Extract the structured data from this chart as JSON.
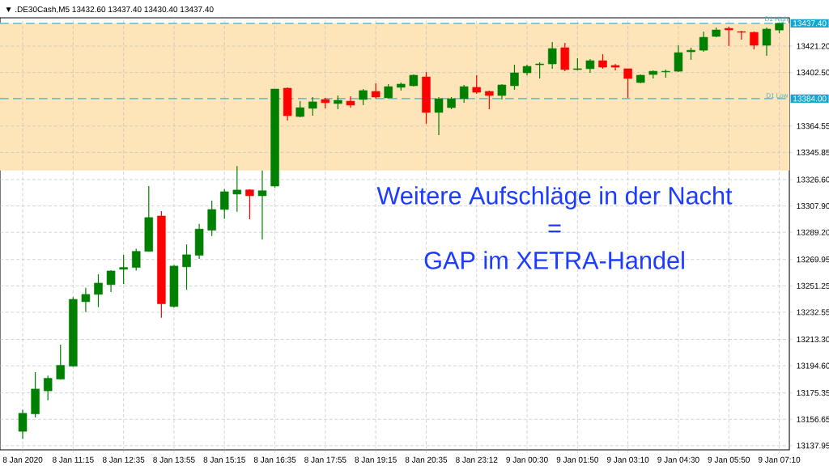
{
  "chart_data": {
    "type": "candlestick",
    "title": "▼ .DE30Cash,M5  13432.60 13437.40 13430.40 13437.40",
    "categories": [
      "8 Jan 2020",
      null,
      null,
      null,
      "8 Jan 11:15",
      null,
      null,
      null,
      "8 Jan 12:35",
      null,
      null,
      null,
      "8 Jan 13:55",
      null,
      null,
      null,
      "8 Jan 15:15",
      null,
      null,
      null,
      "8 Jan 16:35",
      null,
      null,
      null,
      "8 Jan 17:55",
      null,
      null,
      null,
      "8 Jan 19:15",
      null,
      null,
      null,
      "8 Jan 20:35",
      null,
      null,
      null,
      "8 Jan 23:12",
      null,
      null,
      null,
      "9 Jan 00:30",
      null,
      null,
      null,
      "9 Jan 01:50",
      null,
      null,
      null,
      "9 Jan 03:10",
      null,
      null,
      null,
      "9 Jan 04:30",
      null,
      null,
      null,
      "9 Jan 05:50",
      null,
      null,
      null,
      "9 Jan 07:10"
    ],
    "ohlc": [
      [
        13148.1,
        13163.4,
        13142.7,
        13160.9
      ],
      [
        13160.5,
        13190.1,
        13158.0,
        13178.1
      ],
      [
        13176.8,
        13187.7,
        13170.1,
        13185.7
      ],
      [
        13185.1,
        13209.6,
        13184.8,
        13194.9
      ],
      [
        13194.3,
        13243.3,
        13194.0,
        13241.7
      ],
      [
        13240.0,
        13249.8,
        13232.6,
        13245.2
      ],
      [
        13245.2,
        13259.5,
        13236.2,
        13253.2
      ],
      [
        13252.1,
        13262.4,
        13246.9,
        13261.8
      ],
      [
        13263.0,
        13273.3,
        13252.6,
        13264.3
      ],
      [
        13264.3,
        13277.5,
        13262.0,
        13275.7
      ],
      [
        13275.7,
        13322.0,
        13275.7,
        13299.7
      ],
      [
        13300.8,
        13304.2,
        13228.7,
        13238.5
      ],
      [
        13236.6,
        13266.0,
        13236.0,
        13265.3
      ],
      [
        13264.7,
        13280.6,
        13248.6,
        13273.3
      ],
      [
        13272.9,
        13295.2,
        13270.4,
        13291.5
      ],
      [
        13290.7,
        13311.7,
        13286.6,
        13305.4
      ],
      [
        13305.4,
        13319.9,
        13298.7,
        13318.0
      ],
      [
        13316.3,
        13336.2,
        13303.8,
        13319.2
      ],
      [
        13319.3,
        13319.7,
        13298.5,
        13315.1
      ],
      [
        13315.1,
        13333.1,
        13284.2,
        13318.7
      ],
      [
        13322.0,
        13390.8,
        13320.9,
        13390.8
      ],
      [
        13391.4,
        13392.0,
        13368.5,
        13371.9
      ],
      [
        13371.3,
        13382.2,
        13370.8,
        13377.6
      ],
      [
        13377.1,
        13385.1,
        13371.9,
        13381.7
      ],
      [
        13383.4,
        13384.5,
        13377.1,
        13381.1
      ],
      [
        13380.5,
        13386.2,
        13376.5,
        13382.8
      ],
      [
        13382.2,
        13385.7,
        13377.6,
        13379.4
      ],
      [
        13383.4,
        13390.8,
        13379.4,
        13389.7
      ],
      [
        13389.1,
        13394.8,
        13383.9,
        13385.1
      ],
      [
        13384.5,
        13394.3,
        13383.9,
        13392.5
      ],
      [
        13392.0,
        13395.4,
        13389.7,
        13394.3
      ],
      [
        13393.1,
        13401.1,
        13392.5,
        13400.6
      ],
      [
        13399.4,
        13402.9,
        13366.2,
        13374.2
      ],
      [
        13374.2,
        13385.1,
        13358.1,
        13383.9
      ],
      [
        13377.6,
        13385.1,
        13376.5,
        13383.9
      ],
      [
        13383.9,
        13393.7,
        13381.1,
        13392.5
      ],
      [
        13392.0,
        13400.6,
        13387.4,
        13388.5
      ],
      [
        13389.1,
        13389.7,
        13376.5,
        13386.2
      ],
      [
        13386.2,
        13394.3,
        13383.4,
        13393.7
      ],
      [
        13393.1,
        13408.0,
        13390.3,
        13402.3
      ],
      [
        13402.3,
        13408.0,
        13400.6,
        13406.9
      ],
      [
        13408.0,
        13409.7,
        13398.3,
        13408.6
      ],
      [
        13408.6,
        13424.1,
        13405.2,
        13419.5
      ],
      [
        13420.1,
        13423.5,
        13403.4,
        13404.6
      ],
      [
        13404.6,
        13412.6,
        13404.0,
        13405.2
      ],
      [
        13405.2,
        13412.0,
        13402.3,
        13410.9
      ],
      [
        13410.9,
        13415.5,
        13405.2,
        13406.3
      ],
      [
        13407.5,
        13408.6,
        13404.0,
        13406.3
      ],
      [
        13405.2,
        13405.2,
        13384.5,
        13398.3
      ],
      [
        13395.4,
        13401.1,
        13394.8,
        13400.6
      ],
      [
        13401.1,
        13404.0,
        13398.3,
        13403.4
      ],
      [
        13402.9,
        13404.6,
        13398.9,
        13403.4
      ],
      [
        13403.4,
        13421.8,
        13402.9,
        13416.6
      ],
      [
        13417.2,
        13420.1,
        13411.5,
        13418.3
      ],
      [
        13418.3,
        13431.5,
        13417.2,
        13427.5
      ],
      [
        13428.1,
        13434.4,
        13427.5,
        13432.7
      ],
      [
        13433.8,
        13435.0,
        13421.2,
        13432.7
      ],
      [
        13431.5,
        13432.1,
        13425.8,
        13431.0
      ],
      [
        13431.0,
        13431.5,
        13418.9,
        13421.8
      ],
      [
        13421.8,
        13434.4,
        13414.3,
        13433.3
      ],
      [
        13432.6,
        13437.4,
        13430.4,
        13437.4
      ]
    ],
    "ylim": [
      13135,
      13441.3
    ],
    "yticks": [
      13137.95,
      13156.65,
      13175.35,
      {
        "value": 13194.6,
        "label": "13194.60"
      },
      {
        "value": 13213.3,
        "label": "13213.30"
      },
      13232.55,
      13251.25,
      13269.95,
      {
        "value": 13289.2,
        "label": "13289.20"
      },
      {
        "value": 13307.9,
        "label": "13307.90"
      },
      {
        "value": 13326.6,
        "label": "13326.60"
      },
      13345.85,
      13364.55,
      {
        "value": 13402.5,
        "label": "13402.50"
      },
      {
        "value": 13421.2,
        "label": "13421.20"
      }
    ],
    "grid": true,
    "bands": [
      {
        "axis": "y",
        "from": 13333,
        "to": 13437.4,
        "color": "#fde4b9"
      }
    ],
    "ref_lines": [
      {
        "axis": "y",
        "value": 13384,
        "label": "D1 Low",
        "color": "#40b4c8",
        "line_style": "dashed"
      },
      {
        "axis": "y",
        "value": 13437.4,
        "label": "D1 High",
        "color": "#40b4c8",
        "line_style": "dashed"
      }
    ],
    "annotations": [
      "Weitere Aufschläge in der Nacht",
      "=",
      "GAP im XETRA-Handel",
      "13384.00",
      "13437.40"
    ]
  }
}
